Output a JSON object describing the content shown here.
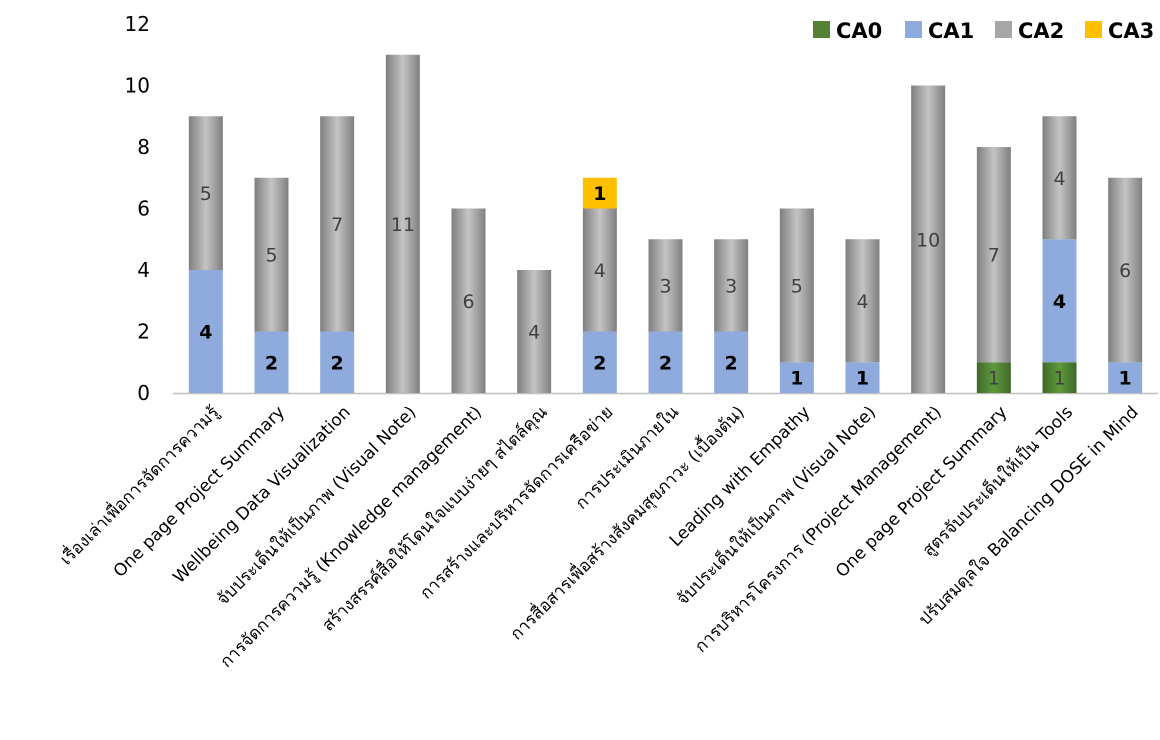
{
  "chart_data": {
    "type": "bar",
    "stacked": true,
    "title": "",
    "xlabel": "",
    "ylabel": "",
    "ylim": [
      0,
      12
    ],
    "yticks": [
      "0",
      "2",
      "4",
      "6",
      "8",
      "10",
      "12"
    ],
    "grid": false,
    "legend_position": "top-right",
    "categories": [
      "เรื่องเล่าเพื่อการจัดการความรู้",
      "One page Project Summary",
      "Wellbeing Data Visualization",
      "จับประเด็นให้เป็นภาพ (Visual Note)",
      "การจัดการความรู้ (Knowledge management)",
      "สร้างสรรค์สื่อให้โดนใจแบบง่ายๆ สไตล์คุณ",
      "การสร้างและบริหารจัดการเครือข่าย",
      "การประเมินภายใน",
      "การสื่อสารเพื่อสร้างสังคมสุขภาวะ (เบื้องต้น)",
      "Leading with Empathy",
      "จับประเด็นให้เป็นภาพ (Visual Note)",
      "การบริหารโครงการ (Project Management)",
      "One page Project Summary",
      "สูตรจับประเด็นให้เป็น Tools",
      "ปรับสมดุลใจ Balancing DOSE in Mind"
    ],
    "series": [
      {
        "name": "CA0",
        "color": "#548235",
        "values": [
          0,
          0,
          0,
          0,
          0,
          0,
          0,
          0,
          0,
          0,
          0,
          0,
          1,
          1,
          0
        ]
      },
      {
        "name": "CA1",
        "color": "#8faadc",
        "values": [
          4,
          2,
          2,
          0,
          0,
          0,
          2,
          2,
          2,
          1,
          1,
          0,
          0,
          4,
          1
        ]
      },
      {
        "name": "CA2",
        "color": "#a6a6a6",
        "values": [
          5,
          5,
          7,
          11,
          6,
          4,
          4,
          3,
          3,
          5,
          4,
          10,
          7,
          4,
          6
        ]
      },
      {
        "name": "CA3",
        "color": "#ffc000",
        "values": [
          0,
          0,
          0,
          0,
          0,
          0,
          1,
          0,
          0,
          0,
          0,
          0,
          0,
          0,
          0
        ]
      }
    ]
  }
}
